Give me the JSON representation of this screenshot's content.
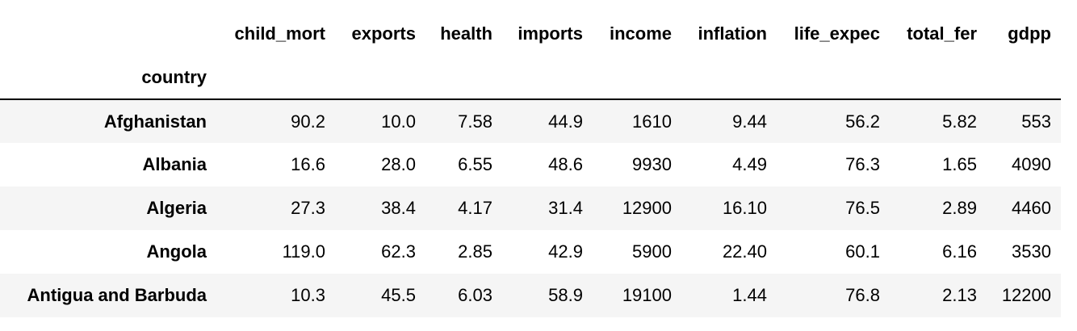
{
  "table": {
    "columns": [
      "child_mort",
      "exports",
      "health",
      "imports",
      "income",
      "inflation",
      "life_expec",
      "total_fer",
      "gdpp"
    ],
    "index_name": "country",
    "rows": [
      {
        "label": "Afghanistan",
        "cells": [
          "90.2",
          "10.0",
          "7.58",
          "44.9",
          "1610",
          "9.44",
          "56.2",
          "5.82",
          "553"
        ]
      },
      {
        "label": "Albania",
        "cells": [
          "16.6",
          "28.0",
          "6.55",
          "48.6",
          "9930",
          "4.49",
          "76.3",
          "1.65",
          "4090"
        ]
      },
      {
        "label": "Algeria",
        "cells": [
          "27.3",
          "38.4",
          "4.17",
          "31.4",
          "12900",
          "16.10",
          "76.5",
          "2.89",
          "4460"
        ]
      },
      {
        "label": "Angola",
        "cells": [
          "119.0",
          "62.3",
          "2.85",
          "42.9",
          "5900",
          "22.40",
          "60.1",
          "6.16",
          "3530"
        ]
      },
      {
        "label": "Antigua and Barbuda",
        "cells": [
          "10.3",
          "45.5",
          "6.03",
          "58.9",
          "19100",
          "1.44",
          "76.8",
          "2.13",
          "12200"
        ]
      }
    ]
  }
}
